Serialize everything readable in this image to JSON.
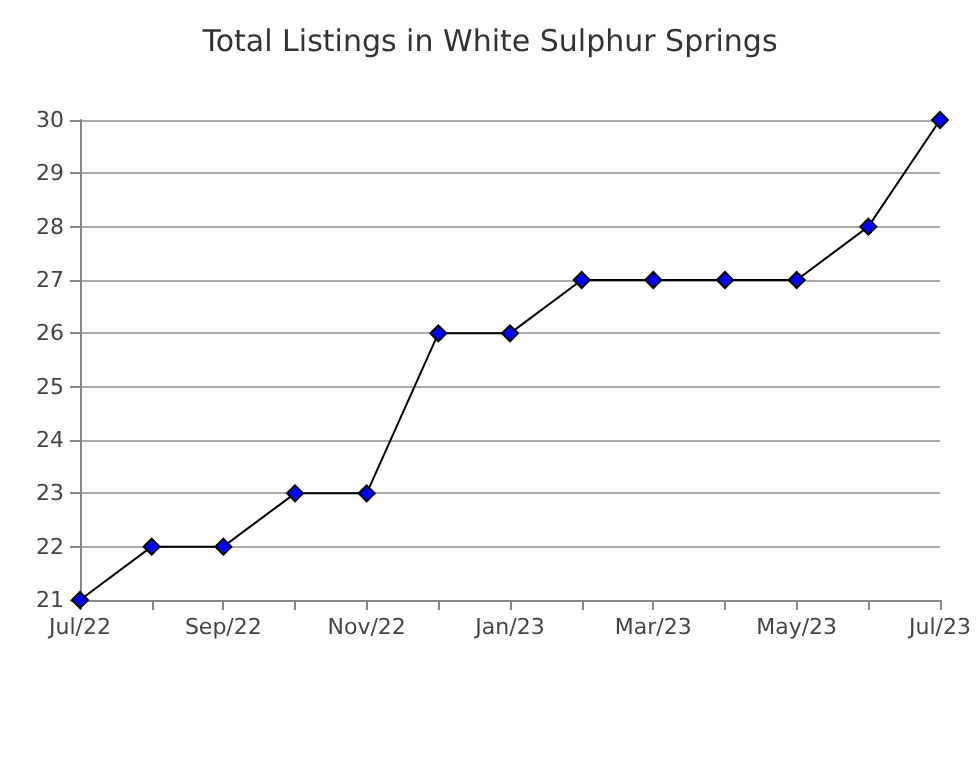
{
  "chart_data": {
    "type": "line",
    "title": "Total Listings in White Sulphur Springs",
    "categories": [
      "Jul/22",
      null,
      "Sep/22",
      null,
      "Nov/22",
      null,
      "Jan/23",
      null,
      "Mar/23",
      null,
      "May/23",
      null,
      "Jul/23"
    ],
    "series": [
      {
        "color": "#0000ff",
        "values": [
          21,
          22,
          22,
          23,
          23,
          26,
          26,
          27,
          27,
          27,
          27,
          28,
          30
        ]
      }
    ],
    "ylim": [
      21,
      30
    ],
    "yticks": [
      21,
      22,
      23,
      24,
      25,
      26,
      27,
      28,
      29,
      30
    ],
    "grid": "y",
    "marker": "diamond",
    "line_style": "solid"
  }
}
